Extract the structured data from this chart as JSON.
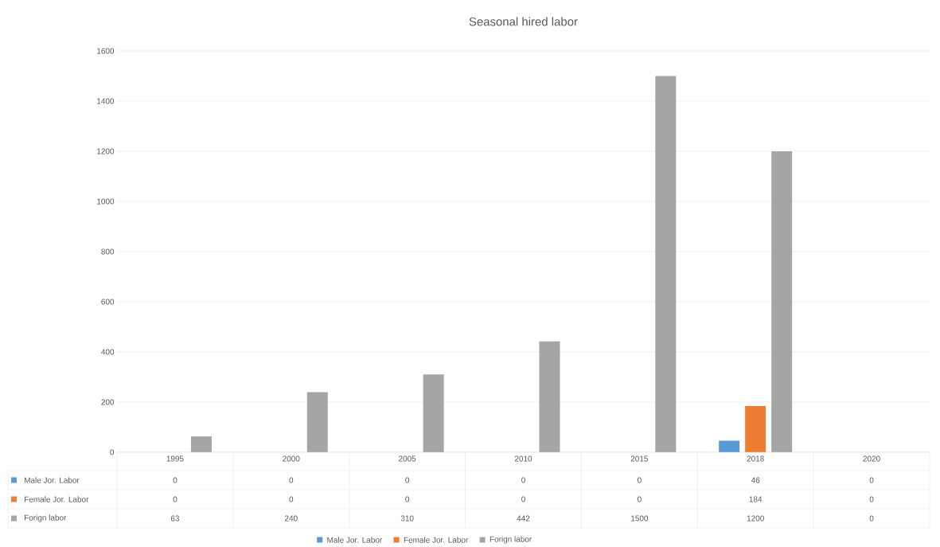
{
  "chart_data": {
    "type": "bar",
    "title": "Seasonal hired labor",
    "categories": [
      "1995",
      "2000",
      "2005",
      "2010",
      "2015",
      "2018",
      "2020"
    ],
    "series": [
      {
        "name": "Male Jor. Labor",
        "color": "#5b9bd5",
        "values": [
          0,
          0,
          0,
          0,
          0,
          46,
          0
        ]
      },
      {
        "name": "Female Jor. Labor",
        "color": "#ed7d31",
        "values": [
          0,
          0,
          0,
          0,
          0,
          184,
          0
        ]
      },
      {
        "name": "Forign labor",
        "color": "#a5a5a5",
        "values": [
          63,
          240,
          310,
          442,
          1500,
          1200,
          0
        ]
      }
    ],
    "ylim": [
      0,
      1600
    ],
    "yticks": [
      0,
      200,
      400,
      600,
      800,
      1000,
      1200,
      1400,
      1600
    ],
    "grid": "y",
    "legend": "bottom",
    "data_labels": true
  }
}
